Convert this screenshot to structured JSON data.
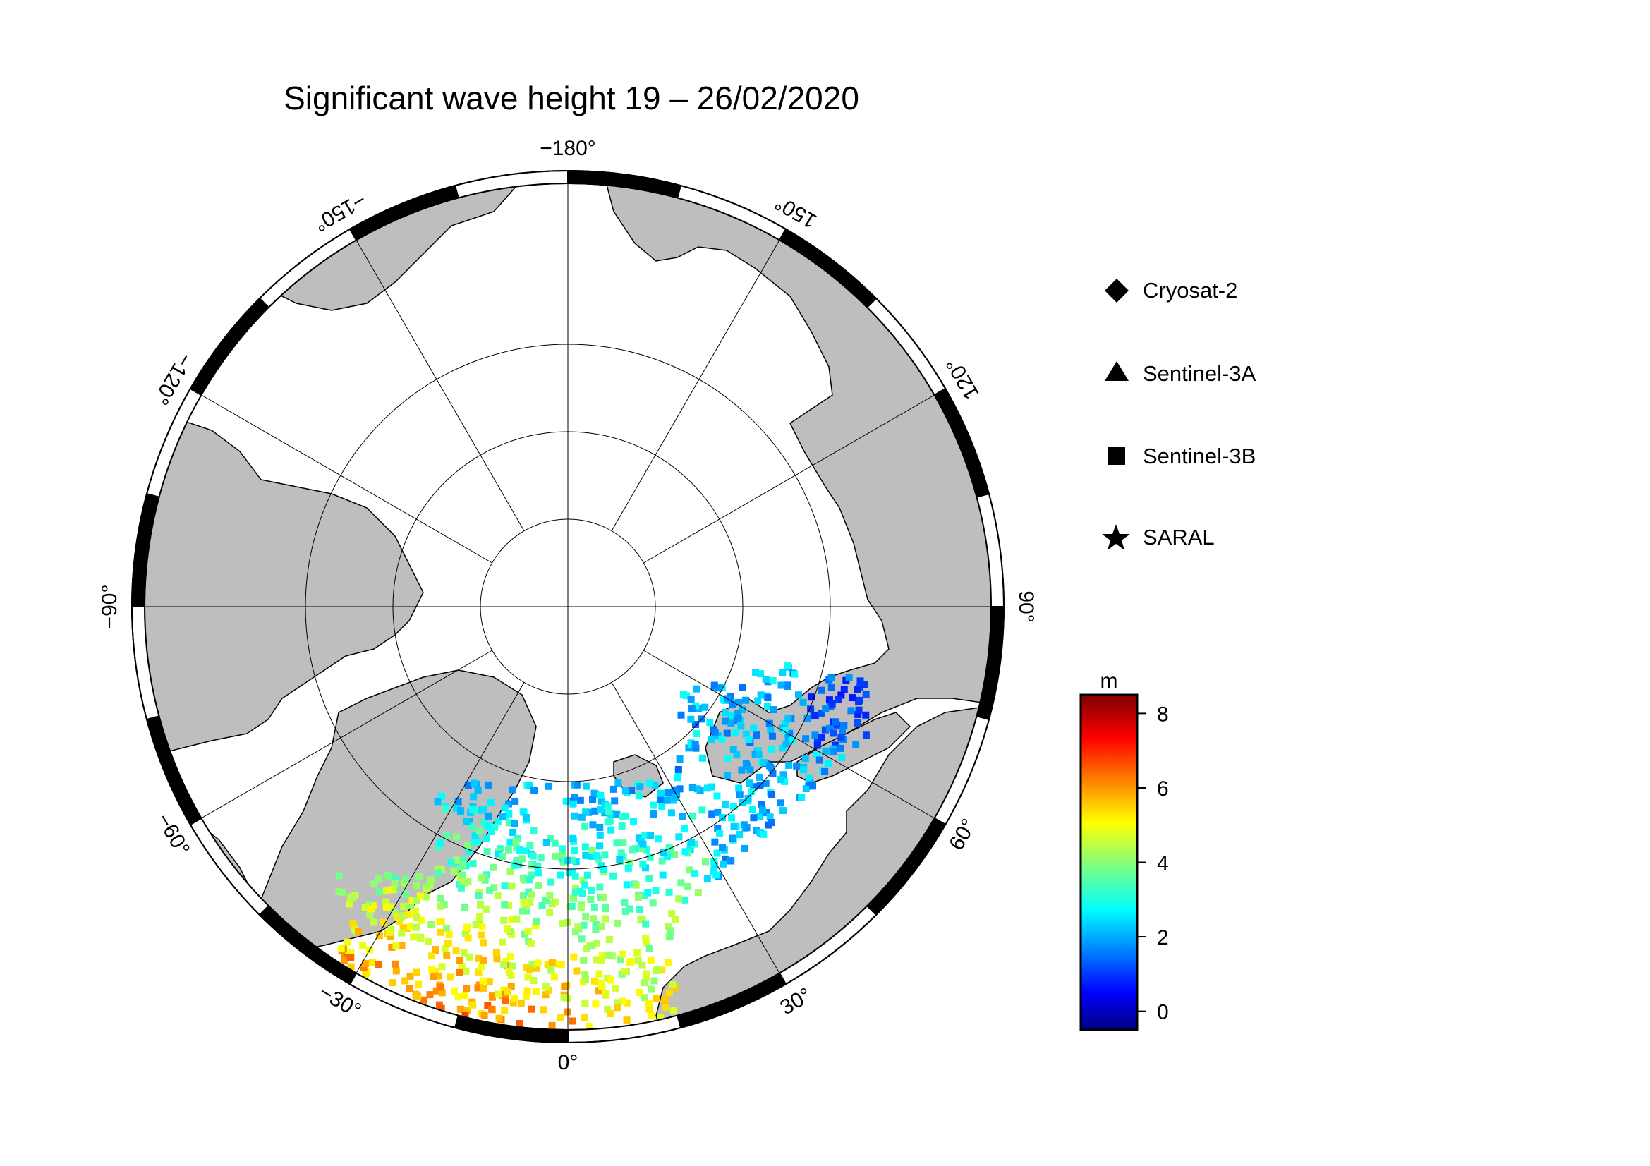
{
  "map": {
    "title": "Significant wave height 19 – 26/02/2020",
    "projection": "polar-stereographic-north",
    "colors": {
      "land": "#bebebe",
      "ocean_ice": "#ffffff",
      "frame": "#000000",
      "graticule": "#000000"
    },
    "longitude_labels": [
      {
        "value": -180,
        "text": "−180°"
      },
      {
        "value": 150,
        "text": "150°"
      },
      {
        "value": 120,
        "text": "120°"
      },
      {
        "value": 90,
        "text": "90°"
      },
      {
        "value": 60,
        "text": "60°"
      },
      {
        "value": 30,
        "text": "30°"
      },
      {
        "value": 0,
        "text": "0°"
      },
      {
        "value": -30,
        "text": "−30°"
      },
      {
        "value": -60,
        "text": "−60°"
      },
      {
        "value": -90,
        "text": "−90°"
      },
      {
        "value": -120,
        "text": "−120°"
      },
      {
        "value": -150,
        "text": "−150°"
      }
    ]
  },
  "legend": {
    "items": [
      {
        "label": "Cryosat-2",
        "symbol": "diamond-icon"
      },
      {
        "label": "Sentinel-3A",
        "symbol": "triangle-icon"
      },
      {
        "label": "Sentinel-3B",
        "symbol": "square-icon"
      },
      {
        "label": "SARAL",
        "symbol": "star-icon"
      }
    ]
  },
  "colorbar": {
    "unit": "m",
    "min": -0.5,
    "max": 8.5,
    "ticks": [
      {
        "value": 8,
        "text": "8"
      },
      {
        "value": 6,
        "text": "6"
      },
      {
        "value": 4,
        "text": "4"
      },
      {
        "value": 2,
        "text": "2"
      },
      {
        "value": 0,
        "text": "0"
      }
    ],
    "colormap": "jet"
  }
}
